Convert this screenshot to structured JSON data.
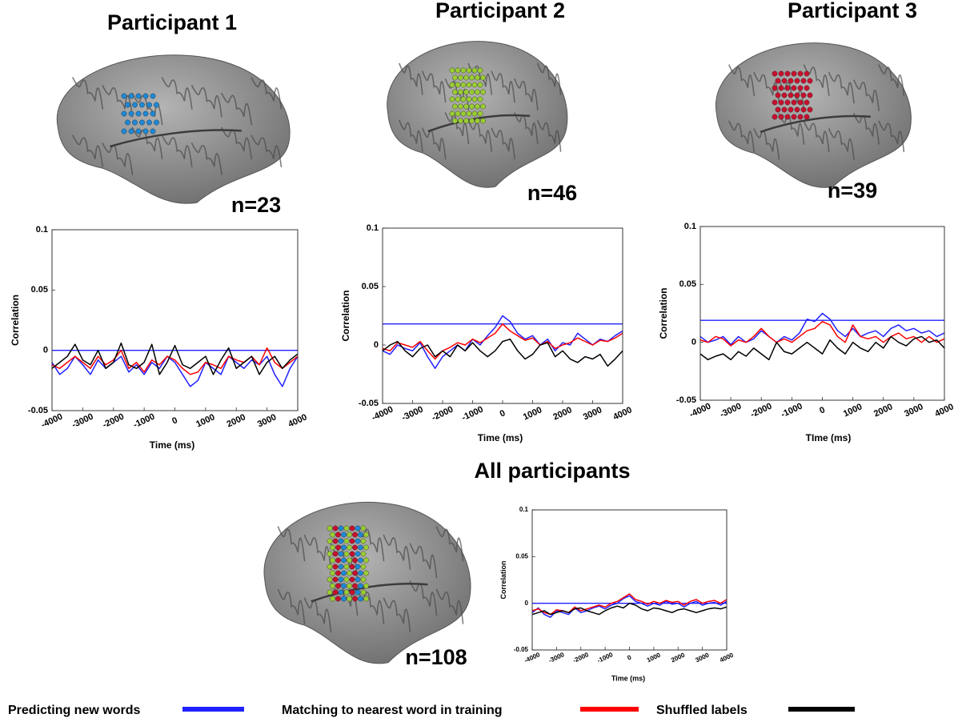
{
  "chart_data": [
    {
      "type": "line",
      "title": "Participant 1",
      "annotation": "n=23",
      "ylabel": "Correlation",
      "xlabel": "Time (ms)",
      "x": [
        -4000,
        -3750,
        -3500,
        -3250,
        -3000,
        -2750,
        -2500,
        -2250,
        -2000,
        -1750,
        -1500,
        -1250,
        -1000,
        -750,
        -500,
        -250,
        0,
        250,
        500,
        750,
        1000,
        1250,
        1500,
        1750,
        2000,
        2250,
        2500,
        2750,
        3000,
        3250,
        3500,
        3750,
        4000
      ],
      "xlim": [
        -4000,
        4000
      ],
      "ylim": [
        -0.05,
        0.1
      ],
      "xticks": [
        -4000,
        -3000,
        -2000,
        -1000,
        0,
        1000,
        2000,
        3000,
        4000
      ],
      "yticks": [
        -0.05,
        0,
        0.05,
        0.1
      ],
      "threshold": 0,
      "series": [
        {
          "name": "Predicting new words",
          "color": "#2020ff",
          "values": [
            -0.01,
            -0.02,
            -0.015,
            -0.005,
            -0.012,
            -0.02,
            -0.008,
            -0.015,
            -0.01,
            -0.005,
            -0.018,
            -0.012,
            -0.02,
            -0.01,
            -0.015,
            -0.005,
            -0.01,
            -0.02,
            -0.03,
            -0.025,
            -0.01,
            -0.015,
            -0.02,
            -0.005,
            -0.01,
            -0.015,
            -0.008,
            -0.012,
            -0.005,
            -0.02,
            -0.03,
            -0.015,
            -0.005
          ]
        },
        {
          "name": "Matching to nearest word in training",
          "color": "#ff0000",
          "values": [
            -0.012,
            -0.015,
            -0.01,
            -0.005,
            -0.01,
            -0.015,
            -0.005,
            -0.012,
            -0.008,
            0.0,
            -0.015,
            -0.01,
            -0.018,
            -0.008,
            -0.012,
            -0.005,
            -0.008,
            -0.015,
            -0.02,
            -0.018,
            -0.01,
            -0.012,
            -0.015,
            -0.005,
            -0.008,
            -0.01,
            -0.005,
            -0.012,
            0.002,
            -0.01,
            -0.015,
            -0.01,
            -0.005
          ]
        },
        {
          "name": "Shuffled labels",
          "color": "#000000",
          "values": [
            -0.015,
            -0.01,
            -0.005,
            0.005,
            -0.008,
            -0.012,
            0.0,
            -0.015,
            -0.01,
            0.006,
            -0.012,
            -0.015,
            -0.01,
            0.005,
            -0.02,
            -0.01,
            0.004,
            -0.012,
            -0.015,
            -0.01,
            -0.005,
            -0.02,
            -0.008,
            0.002,
            -0.015,
            -0.01,
            -0.005,
            -0.02,
            -0.01,
            -0.005,
            -0.015,
            -0.008,
            -0.003
          ]
        }
      ]
    },
    {
      "type": "line",
      "title": "Participant 2",
      "annotation": "n=46",
      "ylabel": "Correlation",
      "xlabel": "Time (ms)",
      "x": [
        -4000,
        -3750,
        -3500,
        -3250,
        -3000,
        -2750,
        -2500,
        -2250,
        -2000,
        -1750,
        -1500,
        -1250,
        -1000,
        -750,
        -500,
        -250,
        0,
        250,
        500,
        750,
        1000,
        1250,
        1500,
        1750,
        2000,
        2250,
        2500,
        2750,
        3000,
        3250,
        3500,
        3750,
        4000
      ],
      "xlim": [
        -4000,
        4000
      ],
      "ylim": [
        -0.05,
        0.1
      ],
      "xticks": [
        -4000,
        -3000,
        -2000,
        -1000,
        0,
        1000,
        2000,
        3000,
        4000
      ],
      "yticks": [
        -0.05,
        0,
        0.05,
        0.1
      ],
      "threshold": 0.018,
      "series": [
        {
          "color": "#2020ff",
          "values": [
            -0.005,
            -0.008,
            0.0,
            -0.003,
            -0.005,
            0.002,
            -0.01,
            -0.02,
            -0.01,
            -0.005,
            0.0,
            -0.005,
            0.005,
            0.0,
            0.008,
            0.015,
            0.025,
            0.02,
            0.01,
            0.005,
            0.008,
            0.0,
            0.005,
            -0.005,
            0.002,
            0.0,
            0.01,
            0.005,
            0.0,
            0.005,
            0.003,
            0.008,
            0.012
          ]
        },
        {
          "color": "#ff0000",
          "values": [
            -0.003,
            -0.005,
            0.002,
            0.0,
            -0.002,
            0.003,
            -0.005,
            -0.012,
            -0.005,
            -0.002,
            0.002,
            0.0,
            0.005,
            0.002,
            0.006,
            0.01,
            0.018,
            0.012,
            0.008,
            0.004,
            0.006,
            0.0,
            0.003,
            -0.003,
            0.0,
            0.002,
            0.006,
            0.003,
            0.0,
            0.004,
            0.003,
            0.006,
            0.01
          ]
        },
        {
          "color": "#000000",
          "values": [
            -0.005,
            0.0,
            0.003,
            -0.005,
            -0.01,
            -0.003,
            0.0,
            -0.01,
            -0.005,
            -0.01,
            0.0,
            -0.005,
            0.002,
            -0.005,
            -0.01,
            -0.005,
            0.003,
            0.005,
            -0.005,
            -0.012,
            -0.008,
            0.0,
            0.002,
            -0.01,
            -0.005,
            -0.012,
            -0.015,
            -0.01,
            -0.012,
            -0.008,
            -0.018,
            -0.012,
            -0.005
          ]
        }
      ]
    },
    {
      "type": "line",
      "title": "Participant 3",
      "annotation": "n=39",
      "ylabel": "Correlation",
      "xlabel": "TIme (ms)",
      "x": [
        -4000,
        -3750,
        -3500,
        -3250,
        -3000,
        -2750,
        -2500,
        -2250,
        -2000,
        -1750,
        -1500,
        -1250,
        -1000,
        -750,
        -500,
        -250,
        0,
        250,
        500,
        750,
        1000,
        1250,
        1500,
        1750,
        2000,
        2250,
        2500,
        2750,
        3000,
        3250,
        3500,
        3750,
        4000
      ],
      "xlim": [
        -4000,
        4000
      ],
      "ylim": [
        -0.05,
        0.1
      ],
      "xticks": [
        -4000,
        -3000,
        -2000,
        -1000,
        0,
        1000,
        2000,
        3000,
        4000
      ],
      "yticks": [
        -0.05,
        0,
        0.05,
        0.1
      ],
      "threshold": 0.019,
      "series": [
        {
          "color": "#2020ff",
          "values": [
            0.005,
            0.0,
            0.002,
            0.005,
            -0.002,
            0.005,
            0.0,
            0.003,
            0.01,
            0.005,
            0.0,
            0.005,
            0.002,
            0.008,
            0.02,
            0.018,
            0.025,
            0.02,
            0.01,
            0.005,
            0.012,
            0.005,
            0.008,
            0.01,
            0.005,
            0.012,
            0.015,
            0.01,
            0.012,
            0.008,
            0.01,
            0.005,
            0.008
          ]
        },
        {
          "color": "#ff0000",
          "values": [
            0.002,
            0.0,
            0.005,
            0.003,
            -0.003,
            0.002,
            0.0,
            0.005,
            0.012,
            0.005,
            0.0,
            0.003,
            0.0,
            0.005,
            0.01,
            0.012,
            0.018,
            0.015,
            0.005,
            0.0,
            0.015,
            0.005,
            0.003,
            0.005,
            0.0,
            0.005,
            0.008,
            0.003,
            0.005,
            0.0,
            0.005,
            0.0,
            0.003
          ]
        },
        {
          "color": "#000000",
          "values": [
            -0.01,
            -0.015,
            -0.012,
            -0.01,
            -0.015,
            -0.008,
            -0.012,
            -0.005,
            -0.01,
            -0.015,
            0.0,
            -0.008,
            -0.01,
            -0.005,
            0.0,
            -0.005,
            -0.01,
            0.002,
            -0.005,
            -0.01,
            0.0,
            -0.005,
            -0.008,
            0.0,
            -0.005,
            0.005,
            0.0,
            -0.003,
            0.003,
            0.005,
            0.0,
            0.002,
            -0.005
          ]
        }
      ]
    },
    {
      "type": "line",
      "title": "All participants",
      "annotation": "n=108",
      "ylabel": "Correlation",
      "xlabel": "Time (ms)",
      "x": [
        -4000,
        -3750,
        -3500,
        -3250,
        -3000,
        -2750,
        -2500,
        -2250,
        -2000,
        -1750,
        -1500,
        -1250,
        -1000,
        -750,
        -500,
        -250,
        0,
        250,
        500,
        750,
        1000,
        1250,
        1500,
        1750,
        2000,
        2250,
        2500,
        2750,
        3000,
        3250,
        3500,
        3750,
        4000
      ],
      "xlim": [
        -4000,
        4000
      ],
      "ylim": [
        -0.05,
        0.1
      ],
      "xticks": [
        -4000,
        -3000,
        -2000,
        -1000,
        0,
        1000,
        2000,
        3000,
        4000
      ],
      "yticks": [
        -0.05,
        0,
        0.05,
        0.1
      ],
      "threshold": 0,
      "series": [
        {
          "color": "#2020ff",
          "values": [
            -0.01,
            -0.005,
            -0.012,
            -0.015,
            -0.008,
            -0.01,
            -0.012,
            -0.005,
            -0.01,
            -0.008,
            -0.005,
            -0.003,
            -0.006,
            -0.002,
            0.0,
            0.005,
            0.008,
            0.002,
            0.0,
            -0.003,
            0.0,
            -0.002,
            0.002,
            -0.001,
            0.0,
            -0.004,
            0.0,
            0.002,
            -0.002,
            0.0,
            0.001,
            -0.002,
            0.002
          ]
        },
        {
          "color": "#ff0000",
          "values": [
            -0.008,
            -0.006,
            -0.01,
            -0.012,
            -0.007,
            -0.008,
            -0.01,
            -0.004,
            -0.008,
            -0.006,
            -0.004,
            -0.002,
            -0.004,
            0.0,
            0.002,
            0.006,
            0.01,
            0.004,
            0.002,
            -0.001,
            0.002,
            0.0,
            0.003,
            0.001,
            0.002,
            -0.002,
            0.002,
            0.004,
            0.0,
            0.002,
            0.003,
            0.0,
            0.004
          ]
        },
        {
          "color": "#000000",
          "values": [
            -0.012,
            -0.01,
            -0.008,
            -0.012,
            -0.01,
            -0.008,
            -0.01,
            -0.006,
            -0.005,
            -0.008,
            -0.01,
            -0.012,
            -0.008,
            -0.005,
            -0.003,
            -0.005,
            0.0,
            -0.002,
            -0.006,
            -0.008,
            -0.005,
            -0.006,
            -0.008,
            -0.01,
            -0.007,
            -0.006,
            -0.008,
            -0.01,
            -0.008,
            -0.006,
            -0.005,
            -0.006,
            -0.004
          ]
        }
      ]
    }
  ]
}
